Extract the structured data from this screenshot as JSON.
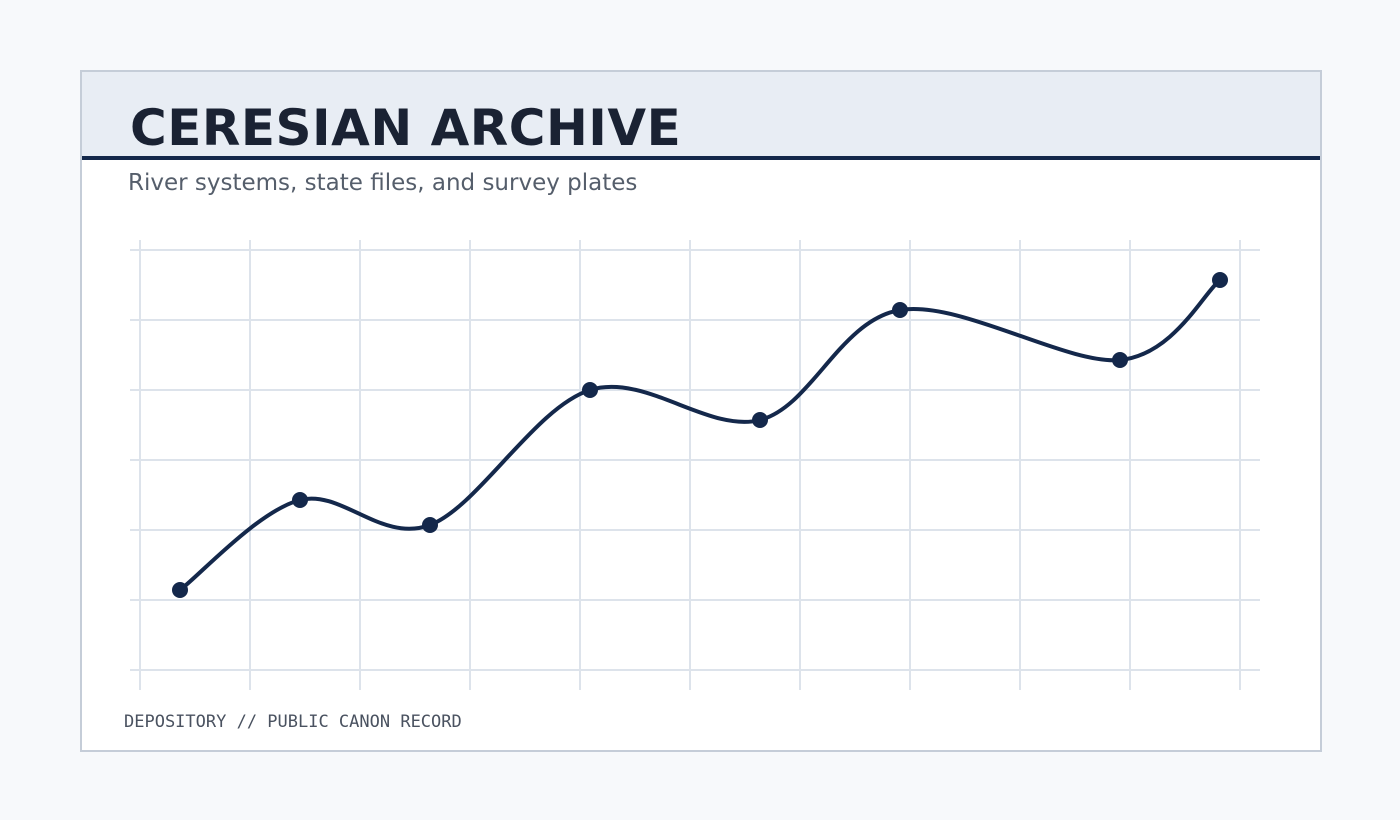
{
  "header": {
    "title": "CERESIAN ARCHIVE",
    "subtitle": "River systems, state files, and survey plates"
  },
  "footer": {
    "text": "DEPOSITORY // PUBLIC CANON RECORD"
  }
}
